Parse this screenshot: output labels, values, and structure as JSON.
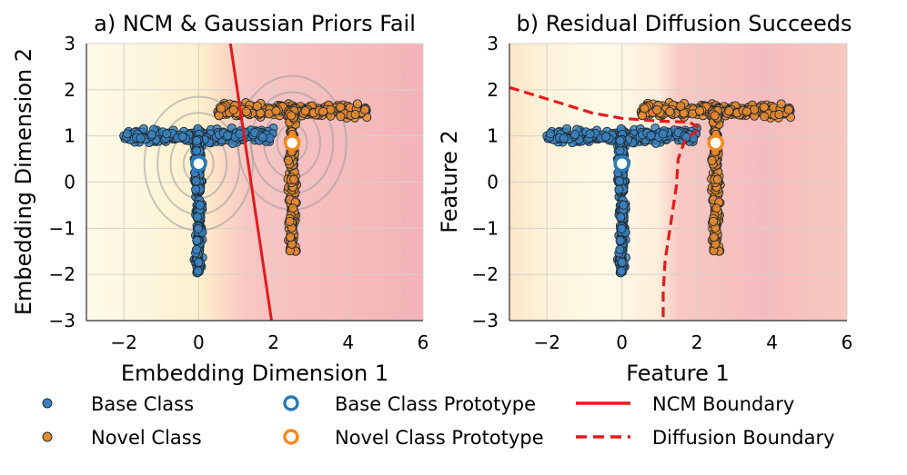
{
  "chart_data": [
    {
      "type": "scatter",
      "title": "a) NCM & Gaussian Priors Fail",
      "xlabel": "Embedding Dimension 1",
      "ylabel": "Embedding Dimension 2",
      "xlim": [
        -3,
        6
      ],
      "ylim": [
        -3,
        3
      ],
      "xticks": [
        "−2",
        "0",
        "2",
        "4",
        "6"
      ],
      "yticks": [
        "3",
        "2",
        "1",
        "0",
        "−1",
        "−2",
        "−3"
      ],
      "grid": true,
      "background": "decision-region shading: light yellow (base) to pink (novel)",
      "series": [
        {
          "name": "Base Class",
          "shape": "T",
          "horizontal_bar": {
            "x": [
              -2.0,
              2.0
            ],
            "y": 1.0
          },
          "vertical_bar": {
            "x": 0.0,
            "y": [
              -2.0,
              1.0
            ]
          },
          "color": "#3a83c0"
        },
        {
          "name": "Novel Class",
          "shape": "T",
          "horizontal_bar": {
            "x": [
              0.5,
              4.5
            ],
            "y": 1.55
          },
          "vertical_bar": {
            "x": 2.5,
            "y": [
              -1.5,
              1.55
            ]
          },
          "color": "#e8892e"
        }
      ],
      "prototypes": [
        {
          "name": "Base Class Prototype",
          "x": 0.0,
          "y": 0.4,
          "color": "#2a7ab8"
        },
        {
          "name": "Novel Class Prototype",
          "x": 2.5,
          "y": 0.85,
          "color": "#f58a1f"
        }
      ],
      "gaussian_contours": [
        {
          "center": [
            0.0,
            0.4
          ],
          "radii": [
            0.4,
            0.75,
            1.1,
            1.45
          ]
        },
        {
          "center": [
            2.5,
            0.85
          ],
          "radii": [
            0.4,
            0.75,
            1.1,
            1.45
          ]
        }
      ],
      "ncm_boundary": {
        "points": [
          [
            0.85,
            3.0
          ],
          [
            1.95,
            -3.0
          ]
        ],
        "style": "solid",
        "color": "#e31a1c"
      }
    },
    {
      "type": "scatter",
      "title": "b) Residual Diffusion Succeeds",
      "xlabel": "Feature 1",
      "ylabel": "Feature 2",
      "xlim": [
        -3,
        6
      ],
      "ylim": [
        -3,
        3
      ],
      "xticks": [
        "−2",
        "0",
        "2",
        "4",
        "6"
      ],
      "yticks": [
        "3",
        "2",
        "1",
        "0",
        "−1",
        "−2",
        "−3"
      ],
      "grid": true,
      "series": [
        {
          "name": "Base Class",
          "shape": "T",
          "horizontal_bar": {
            "x": [
              -2.0,
              2.0
            ],
            "y": 1.0
          },
          "vertical_bar": {
            "x": 0.0,
            "y": [
              -2.0,
              1.0
            ]
          },
          "color": "#3a83c0"
        },
        {
          "name": "Novel Class",
          "shape": "T",
          "horizontal_bar": {
            "x": [
              0.5,
              4.5
            ],
            "y": 1.55
          },
          "vertical_bar": {
            "x": 2.5,
            "y": [
              -1.5,
              1.55
            ]
          },
          "color": "#e8892e"
        }
      ],
      "prototypes": [
        {
          "name": "Base Class Prototype",
          "x": 0.0,
          "y": 0.4,
          "color": "#2a7ab8"
        },
        {
          "name": "Novel Class Prototype",
          "x": 2.5,
          "y": 0.85,
          "color": "#f58a1f"
        }
      ],
      "diffusion_boundary": {
        "style": "dashed",
        "color": "#e31a1c",
        "points": [
          [
            -3.0,
            2.05
          ],
          [
            -1.8,
            1.75
          ],
          [
            -0.8,
            1.5
          ],
          [
            0.0,
            1.38
          ],
          [
            1.0,
            1.32
          ],
          [
            1.8,
            1.3
          ],
          [
            2.1,
            1.15
          ],
          [
            1.7,
            0.95
          ],
          [
            1.5,
            0.5
          ],
          [
            1.45,
            -0.1
          ],
          [
            1.3,
            -0.9
          ],
          [
            1.15,
            -1.7
          ],
          [
            1.1,
            -2.4
          ],
          [
            1.1,
            -3.0
          ]
        ]
      }
    }
  ],
  "legend": {
    "placement": "bottom",
    "entries": [
      {
        "label": "Base Class",
        "kind": "marker-filled",
        "color": "#3a83c0"
      },
      {
        "label": "Novel Class",
        "kind": "marker-filled",
        "color": "#e8892e"
      },
      {
        "label": "Base Class Prototype",
        "kind": "marker-ring",
        "color": "#2a7ab8"
      },
      {
        "label": "Novel Class Prototype",
        "kind": "marker-ring",
        "color": "#f58a1f"
      },
      {
        "label": "NCM Boundary",
        "kind": "line-solid",
        "color": "#e31a1c"
      },
      {
        "label": "Diffusion Boundary",
        "kind": "line-dashed",
        "color": "#e31a1c"
      }
    ]
  }
}
